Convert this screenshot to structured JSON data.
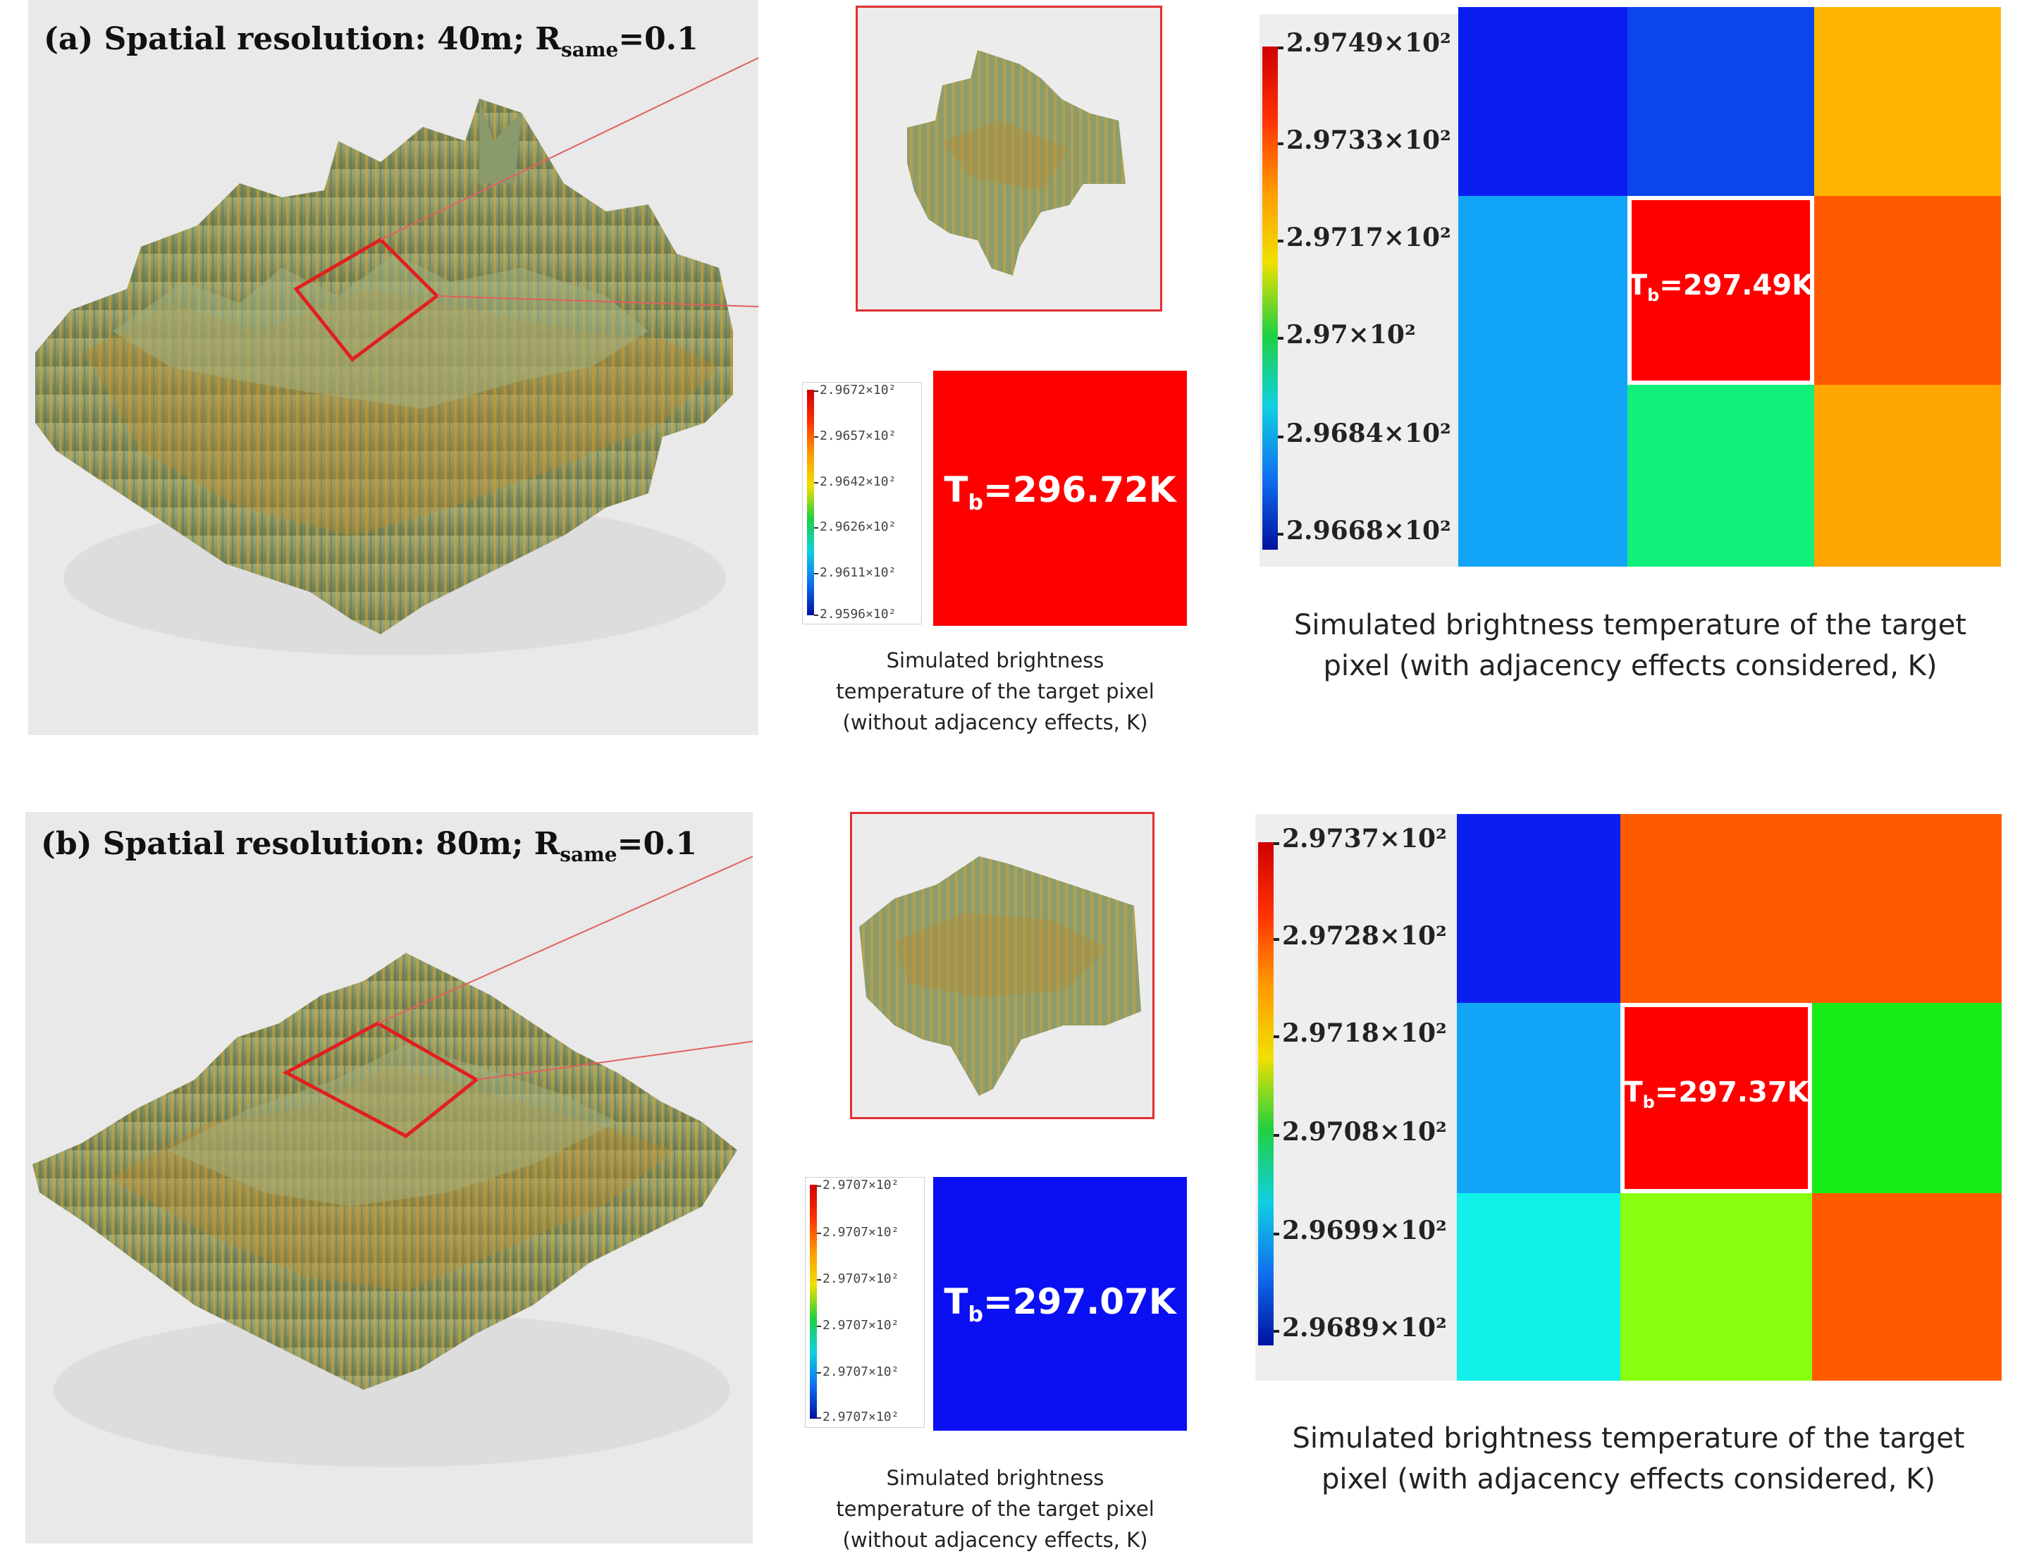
{
  "panel_a": {
    "title_prefix": "(a) Spatial resolution: 40m; R",
    "title_sub": "same",
    "title_suffix": "=0.1",
    "small_colorbar_labels": [
      "2.9672×10²",
      "2.9657×10²",
      "2.9642×10²",
      "2.9626×10²",
      "2.9611×10²",
      "2.9596×10²"
    ],
    "single_pixel": {
      "label_prefix": "T",
      "label_sub": "b",
      "label_suffix": "=296.72K",
      "color": "#ff0000"
    },
    "small_caption": [
      "Simulated brightness",
      "temperature of the target pixel",
      "(without adjacency effects, K)"
    ],
    "big_colorbar_labels": [
      "2.9749×10²",
      "2.9733×10²",
      "2.9717×10²",
      "2.97×10²",
      "2.9684×10²",
      "2.9668×10²"
    ],
    "grid_colors": [
      "#0a1ef0",
      "#0b46ec",
      "#ffb400",
      "#12a5f7",
      "#ff0000",
      "#ff5a00",
      "#12a5f7",
      "#10f07a",
      "#ffa600"
    ],
    "grid_label_prefix": "T",
    "grid_label_sub": "b",
    "grid_label_suffix": "=297.49K",
    "big_caption": [
      "Simulated brightness temperature of the target",
      "pixel (with adjacency effects considered, K)"
    ]
  },
  "panel_b": {
    "title_prefix": "(b) Spatial resolution: 80m; R",
    "title_sub": "same",
    "title_suffix": "=0.1",
    "small_colorbar_labels": [
      "2.9707×10²",
      "2.9707×10²",
      "2.9707×10²",
      "2.9707×10²",
      "2.9707×10²",
      "2.9707×10²"
    ],
    "single_pixel": {
      "label_prefix": "T",
      "label_sub": "b",
      "label_suffix": "=297.07K",
      "color": "#0a10f2"
    },
    "small_caption": [
      "Simulated brightness",
      "temperature of the target pixel",
      "(without adjacency effects, K)"
    ],
    "big_colorbar_labels": [
      "2.9737×10²",
      "2.9728×10²",
      "2.9718×10²",
      "2.9708×10²",
      "2.9699×10²",
      "2.9689×10²"
    ],
    "grid_colors": [
      "#0a1ef0",
      "#ff5a00",
      "#ff5a00",
      "#12a5f7",
      "#ff0000",
      "#18ec18",
      "#12f0ea",
      "#88ff10",
      "#ff5a00"
    ],
    "grid_label_prefix": "T",
    "grid_label_sub": "b",
    "grid_label_suffix": "=297.37K",
    "big_caption": [
      "Simulated brightness temperature of the target",
      "pixel (with adjacency effects considered, K)"
    ]
  },
  "colors": {
    "terrain_green": "#8a9a6a",
    "terrain_ochre": "#d9a634",
    "highlight_red": "#e02020"
  }
}
